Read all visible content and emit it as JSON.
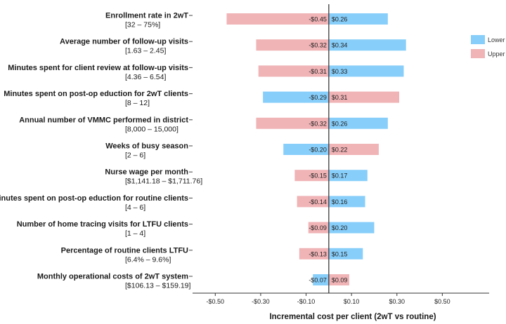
{
  "chart_data": {
    "type": "bar",
    "subtype": "tornado",
    "xlabel": "Incremental cost per client (2wT vs routine)",
    "xlim": [
      -0.6,
      0.7
    ],
    "x_ticks": [
      {
        "value": -0.5,
        "label": "-$0.50"
      },
      {
        "value": -0.3,
        "label": "-$0.30"
      },
      {
        "value": -0.1,
        "label": "-$0.10"
      },
      {
        "value": 0.1,
        "label": "$0.10"
      },
      {
        "value": 0.3,
        "label": "$0.30"
      },
      {
        "value": 0.5,
        "label": "$0.50"
      }
    ],
    "baseline": 0.0,
    "legend": {
      "position": "right",
      "entries": [
        {
          "name": "Lower",
          "color": "#87CEFA"
        },
        {
          "name": "Upper",
          "color": "#F0B3B6"
        }
      ]
    },
    "parameters": [
      {
        "name": "Enrollment rate in 2wT",
        "range": "[32 – 75%]",
        "neg": -0.45,
        "neg_label": "-$0.45",
        "neg_series": "Upper",
        "pos": 0.26,
        "pos_label": "$0.26",
        "pos_series": "Lower"
      },
      {
        "name": "Average number of follow-up visits",
        "range": "[1.63 – 2.45]",
        "neg": -0.32,
        "neg_label": "-$0.32",
        "neg_series": "Upper",
        "pos": 0.34,
        "pos_label": "$0.34",
        "pos_series": "Lower"
      },
      {
        "name": "Minutes spent for client review at follow-up visits",
        "range": "[4.36 – 6.54]",
        "neg": -0.31,
        "neg_label": "-$0.31",
        "neg_series": "Upper",
        "pos": 0.33,
        "pos_label": "$0.33",
        "pos_series": "Lower"
      },
      {
        "name": "Minutes spent on post-op eduction for 2wT clients",
        "range": "[8 – 12]",
        "neg": -0.29,
        "neg_label": "-$0.29",
        "neg_series": "Lower",
        "pos": 0.31,
        "pos_label": "$0.31",
        "pos_series": "Upper"
      },
      {
        "name": "Annual number of VMMC performed in district",
        "range": "[8,000 – 15,000]",
        "neg": -0.32,
        "neg_label": "-$0.32",
        "neg_series": "Upper",
        "pos": 0.26,
        "pos_label": "$0.26",
        "pos_series": "Lower"
      },
      {
        "name": "Weeks of busy season",
        "range": "[2 – 6]",
        "neg": -0.2,
        "neg_label": "-$0.20",
        "neg_series": "Lower",
        "pos": 0.22,
        "pos_label": "$0.22",
        "pos_series": "Upper"
      },
      {
        "name": "Nurse wage per month",
        "range": "[$1,141.18 – $1,711.76]",
        "neg": -0.15,
        "neg_label": "-$0.15",
        "neg_series": "Upper",
        "pos": 0.17,
        "pos_label": "$0.17",
        "pos_series": "Lower"
      },
      {
        "name": "Minutes spent on post-op eduction for routine clients",
        "range": "[4 – 6]",
        "neg": -0.14,
        "neg_label": "-$0.14",
        "neg_series": "Upper",
        "pos": 0.16,
        "pos_label": "$0.16",
        "pos_series": "Lower"
      },
      {
        "name": "Number of home tracing visits for LTFU clients",
        "range": "[1 – 4]",
        "neg": -0.09,
        "neg_label": "-$0.09",
        "neg_series": "Upper",
        "pos": 0.2,
        "pos_label": "$0.20",
        "pos_series": "Lower"
      },
      {
        "name": "Percentage of routine clients LTFU",
        "range": "[6.4% – 9.6%]",
        "neg": -0.13,
        "neg_label": "-$0.13",
        "neg_series": "Upper",
        "pos": 0.15,
        "pos_label": "$0.15",
        "pos_series": "Lower"
      },
      {
        "name": "Monthly operational costs of 2wT system",
        "range": "[$106.13 – $159.19]",
        "neg": -0.07,
        "neg_label": "-$0.07",
        "neg_series": "Lower",
        "pos": 0.09,
        "pos_label": "$0.09",
        "pos_series": "Upper"
      }
    ]
  }
}
